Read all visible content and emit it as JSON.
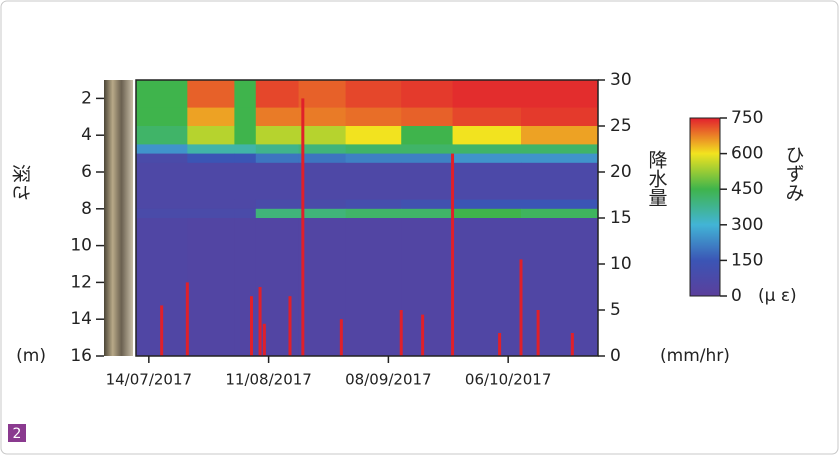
{
  "chart_data": {
    "type": "heatmap",
    "figure_label": "2",
    "ylabel": "深さ",
    "yunit": "(m)",
    "ylim": [
      1,
      16
    ],
    "yticks": [
      2,
      4,
      6,
      8,
      10,
      12,
      14,
      16
    ],
    "xlim": [
      "2017-07-11",
      "2017-10-27"
    ],
    "xticks": [
      {
        "value": "2017-07-14",
        "label": "14/07/2017"
      },
      {
        "value": "2017-08-11",
        "label": "11/08/2017"
      },
      {
        "value": "2017-09-08",
        "label": "08/09/2017"
      },
      {
        "value": "2017-10-06",
        "label": "06/10/2017"
      }
    ],
    "x_edges": [
      "2017-07-11",
      "2017-07-23",
      "2017-08-03",
      "2017-08-08",
      "2017-08-18",
      "2017-08-29",
      "2017-09-11",
      "2017-09-23",
      "2017-10-09",
      "2017-10-27"
    ],
    "y_edges": [
      1,
      2.5,
      3.5,
      4.5,
      5,
      5.5,
      7.5,
      8,
      8.5,
      16
    ],
    "z": [
      [
        450,
        700,
        450,
        720,
        700,
        720,
        730,
        740,
        740
      ],
      [
        450,
        650,
        450,
        680,
        680,
        690,
        700,
        720,
        730
      ],
      [
        420,
        550,
        450,
        550,
        550,
        600,
        450,
        600,
        650
      ],
      [
        250,
        350,
        350,
        380,
        400,
        420,
        420,
        420,
        420
      ],
      [
        80,
        150,
        150,
        200,
        200,
        220,
        220,
        250,
        250
      ],
      [
        60,
        60,
        60,
        60,
        60,
        60,
        60,
        70,
        70
      ],
      [
        60,
        60,
        60,
        80,
        80,
        100,
        120,
        150,
        150
      ],
      [
        80,
        80,
        80,
        400,
        400,
        420,
        420,
        450,
        430
      ],
      [
        50,
        40,
        40,
        40,
        40,
        40,
        40,
        50,
        50
      ]
    ],
    "colorbar": {
      "label": "ひずみ",
      "unit": "(μ ε)",
      "lim": [
        0,
        750
      ],
      "ticks": [
        0,
        150,
        300,
        450,
        600,
        750
      ],
      "colormap": [
        "#5b3f9c",
        "#3b55b5",
        "#42b4d6",
        "#3fb44c",
        "#f2e31f",
        "#e2202e"
      ]
    },
    "rain": {
      "label": "降水量",
      "unit": "(mm/hr)",
      "color": "#e0202a",
      "y2lim": [
        0,
        30
      ],
      "y2ticks": [
        0,
        5,
        10,
        15,
        20,
        25,
        30
      ],
      "x": [
        "2017-07-17",
        "2017-07-23",
        "2017-08-07",
        "2017-08-09",
        "2017-08-10",
        "2017-08-16",
        "2017-08-19",
        "2017-08-28",
        "2017-09-11",
        "2017-09-16",
        "2017-09-23",
        "2017-10-04",
        "2017-10-09",
        "2017-10-13",
        "2017-10-21"
      ],
      "values": [
        5.5,
        8,
        6.5,
        7.5,
        3.5,
        6.5,
        28,
        4,
        5,
        4.5,
        22,
        2.5,
        10.5,
        5,
        2.5
      ]
    }
  }
}
